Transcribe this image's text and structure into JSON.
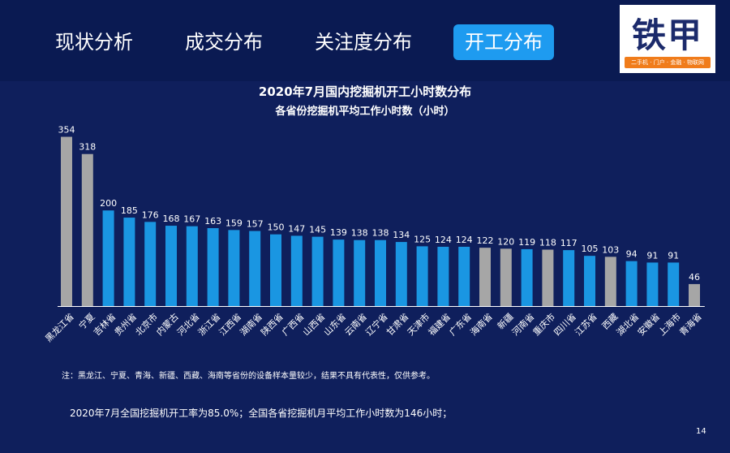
{
  "nav": {
    "tabs": [
      {
        "label": "现状分析",
        "active": false
      },
      {
        "label": "成交分布",
        "active": false
      },
      {
        "label": "关注度分布",
        "active": false
      },
      {
        "label": "开工分布",
        "active": true
      }
    ]
  },
  "logo": {
    "text": "铁甲",
    "tagline": "二手机 · 门户 · 金融 · 物联网"
  },
  "colors": {
    "blue_bar": "#1a96e2",
    "gray_bar": "#a6a6a6",
    "background": "#0f1f5c",
    "active_tab": "#1e9bf0"
  },
  "chart_data": {
    "type": "bar",
    "title": "2020年7月国内挖掘机开工小时数分布",
    "subtitle": "各省份挖掘机平均工作小时数（小时）",
    "categories": [
      "黑龙江省",
      "宁夏",
      "吉林省",
      "贵州省",
      "北京市",
      "内蒙古",
      "河北省",
      "浙江省",
      "江西省",
      "湖南省",
      "陕西省",
      "广西省",
      "山西省",
      "山东省",
      "云南省",
      "辽宁省",
      "甘肃省",
      "天津市",
      "福建省",
      "广东省",
      "海南省",
      "新疆",
      "河南省",
      "重庆市",
      "四川省",
      "江苏省",
      "西藏",
      "湖北省",
      "安徽省",
      "上海市",
      "青海省"
    ],
    "values": [
      354,
      318,
      200,
      185,
      176,
      168,
      167,
      163,
      159,
      157,
      150,
      147,
      145,
      139,
      138,
      138,
      134,
      125,
      124,
      124,
      122,
      120,
      119,
      118,
      117,
      105,
      103,
      94,
      91,
      91,
      46
    ],
    "highlight_gray": [
      "黑龙江省",
      "宁夏",
      "海南省",
      "新疆",
      "重庆市",
      "西藏",
      "青海省"
    ],
    "ylim": [
      0,
      360
    ],
    "xlabel": "",
    "ylabel": "",
    "grid": false
  },
  "footer": {
    "note": "注：黑龙江、宁夏、青海、新疆、西藏、海南等省份的设备样本量较少，结果不具有代表性，仅供参考。",
    "summary": "2020年7月全国挖掘机开工率为85.0%；全国各省挖掘机月平均工作小时数为146小时；",
    "page_number": "14"
  }
}
